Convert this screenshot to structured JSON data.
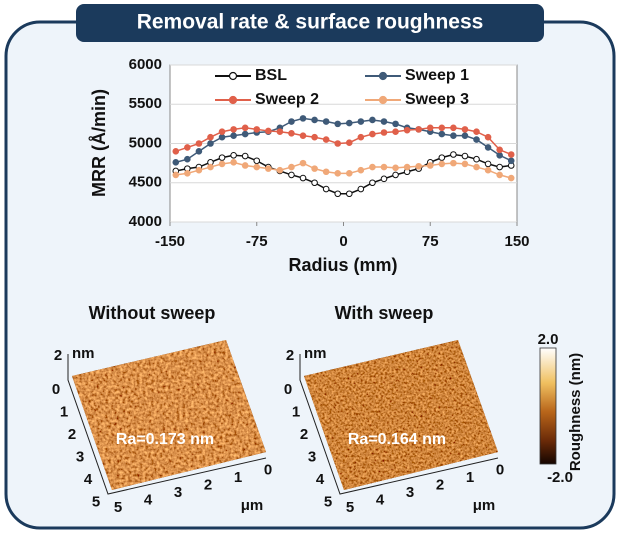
{
  "chart_data": {
    "type": "line",
    "title": "Removal rate & surface roughness",
    "xlabel": "Radius (mm)",
    "ylabel": "MRR (Å/min)",
    "x": [
      -145,
      -135,
      -125,
      -115,
      -105,
      -95,
      -85,
      -75,
      -65,
      -55,
      -45,
      -35,
      -25,
      -15,
      -5,
      5,
      15,
      25,
      35,
      45,
      55,
      65,
      75,
      85,
      95,
      105,
      115,
      125,
      135,
      145
    ],
    "series": [
      {
        "name": "BSL",
        "color": "#111111",
        "marker_fill": "#ffffff",
        "values": [
          4650,
          4680,
          4700,
          4760,
          4820,
          4850,
          4840,
          4780,
          4700,
          4650,
          4600,
          4560,
          4500,
          4420,
          4360,
          4360,
          4420,
          4500,
          4550,
          4600,
          4640,
          4680,
          4760,
          4820,
          4860,
          4840,
          4800,
          4740,
          4700,
          4720
        ]
      },
      {
        "name": "Sweep 1",
        "color": "#3f5a78",
        "marker_fill": "#3f5a78",
        "values": [
          4760,
          4800,
          4900,
          5000,
          5080,
          5100,
          5120,
          5140,
          5150,
          5200,
          5280,
          5320,
          5300,
          5280,
          5250,
          5260,
          5280,
          5300,
          5280,
          5250,
          5200,
          5180,
          5150,
          5120,
          5100,
          5100,
          5050,
          4950,
          4850,
          4780
        ]
      },
      {
        "name": "Sweep 2",
        "color": "#e0604a",
        "marker_fill": "#e0604a",
        "values": [
          4900,
          4950,
          5000,
          5080,
          5150,
          5180,
          5200,
          5180,
          5160,
          5150,
          5130,
          5100,
          5080,
          5050,
          5000,
          5010,
          5080,
          5120,
          5140,
          5150,
          5170,
          5180,
          5200,
          5200,
          5200,
          5180,
          5150,
          5080,
          4920,
          4860
        ]
      },
      {
        "name": "Sweep 3",
        "color": "#f0a878",
        "marker_fill": "#f0a878",
        "values": [
          4600,
          4620,
          4660,
          4700,
          4740,
          4760,
          4720,
          4700,
          4680,
          4660,
          4700,
          4750,
          4680,
          4640,
          4620,
          4620,
          4660,
          4700,
          4700,
          4690,
          4700,
          4710,
          4720,
          4740,
          4750,
          4740,
          4700,
          4660,
          4600,
          4560
        ]
      }
    ],
    "xlim": [
      -150,
      150
    ],
    "xticks": [
      -150,
      -75,
      0,
      75,
      150
    ],
    "ylim": [
      4000,
      6000
    ],
    "yticks": [
      4000,
      4500,
      5000,
      5500,
      6000
    ],
    "grid": true
  },
  "afm": {
    "z_ticks": [
      2
    ],
    "z_unit": "nm",
    "y_ticks": [
      0,
      1,
      2,
      3,
      4,
      5
    ],
    "x_ticks": [
      5,
      4,
      3,
      2,
      1,
      0
    ],
    "unit": "μm",
    "panels": [
      {
        "title": "Without sweep",
        "ra": "Ra=0.173 nm"
      },
      {
        "title": "With sweep",
        "ra": "Ra=0.164 nm"
      }
    ],
    "colorbar": {
      "max": "2.0",
      "min": "-2.0",
      "label": "Roughness (nm)"
    }
  }
}
